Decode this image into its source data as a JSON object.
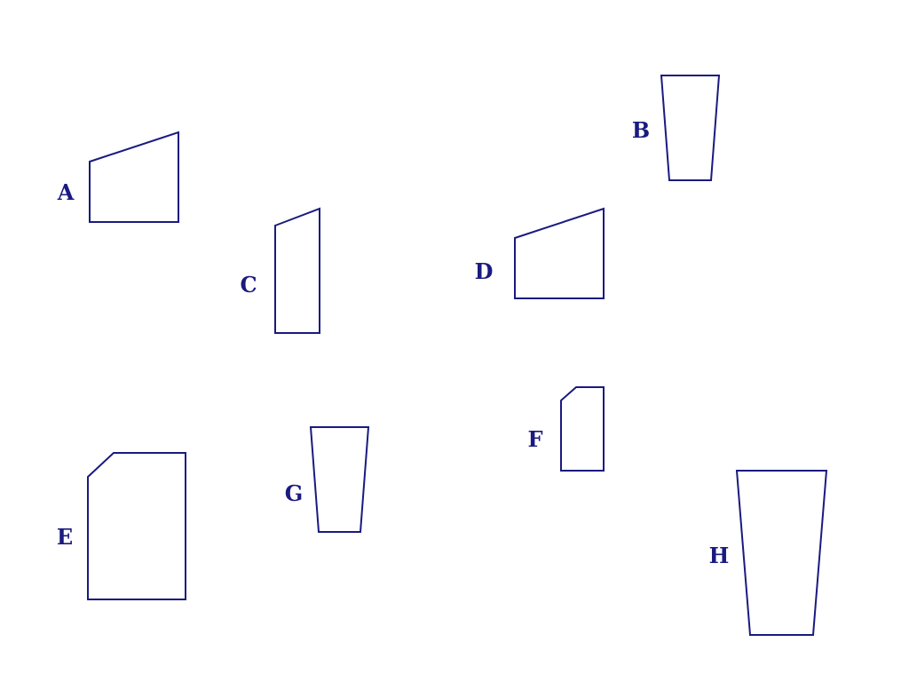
{
  "style": {
    "stroke_color": "#1a1a80",
    "label_color": "#1a1a80",
    "background": "#ffffff"
  },
  "shapes": [
    {
      "label": "A",
      "kind": "right trapezoid"
    },
    {
      "label": "B",
      "kind": "isosceles trapezoid"
    },
    {
      "label": "C",
      "kind": "right trapezoid"
    },
    {
      "label": "D",
      "kind": "right trapezoid"
    },
    {
      "label": "E",
      "kind": "pentagon"
    },
    {
      "label": "F",
      "kind": "pentagon"
    },
    {
      "label": "G",
      "kind": "isosceles trapezoid"
    },
    {
      "label": "H",
      "kind": "isosceles trapezoid"
    }
  ]
}
